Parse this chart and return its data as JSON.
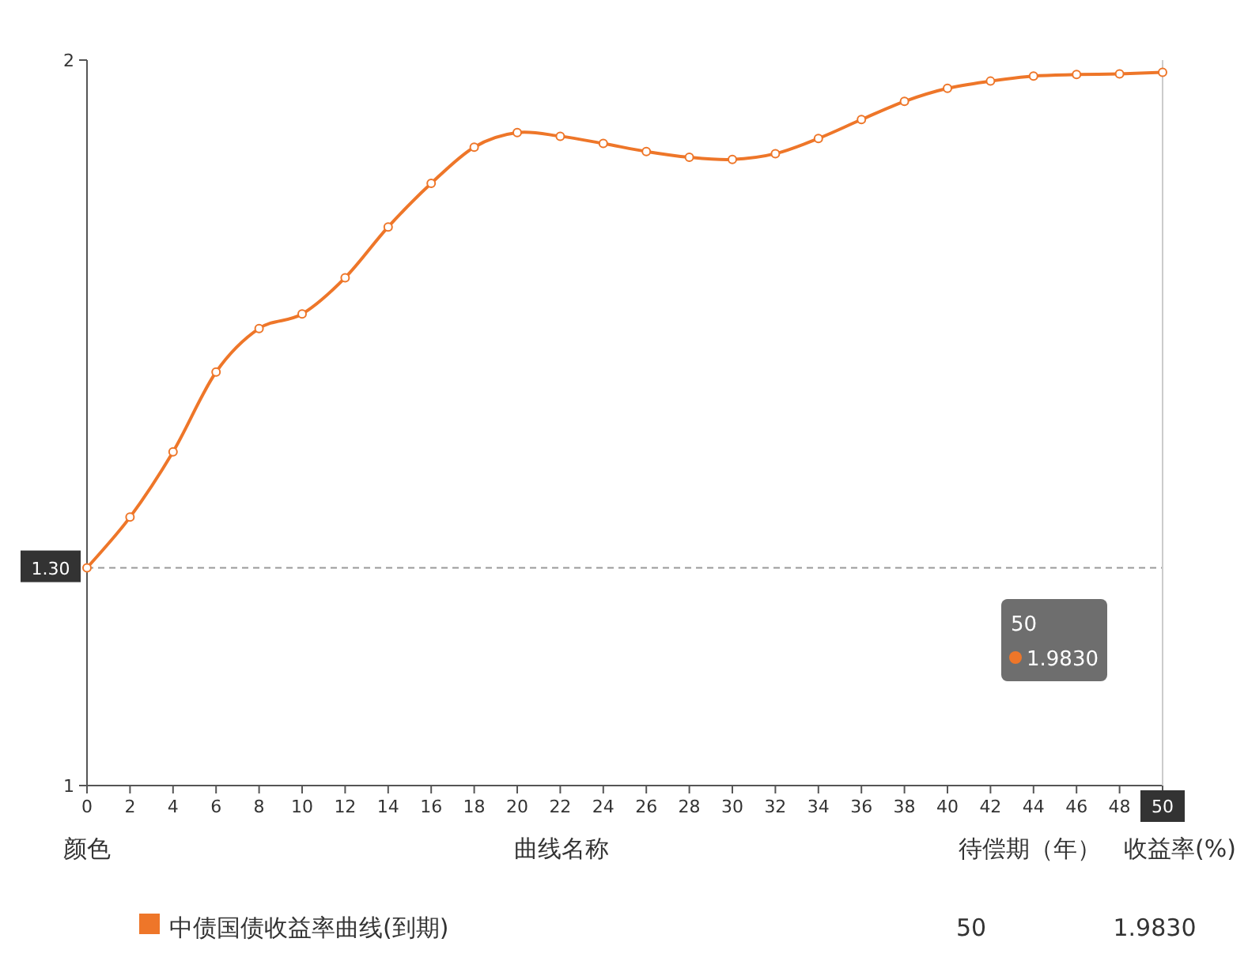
{
  "chart_data": {
    "type": "line",
    "x": [
      0,
      2,
      4,
      6,
      8,
      10,
      12,
      14,
      16,
      18,
      20,
      22,
      24,
      26,
      28,
      30,
      32,
      34,
      36,
      38,
      40,
      42,
      44,
      46,
      48,
      50
    ],
    "series": [
      {
        "name": "中债国债收益率曲线(到期)",
        "color": "#ee7629",
        "values": [
          1.3,
          1.37,
          1.46,
          1.57,
          1.63,
          1.65,
          1.7,
          1.77,
          1.83,
          1.88,
          1.9,
          1.895,
          1.885,
          1.874,
          1.866,
          1.863,
          1.871,
          1.892,
          1.918,
          1.943,
          1.961,
          1.971,
          1.978,
          1.98,
          1.981,
          1.983
        ]
      }
    ],
    "xlim": [
      0,
      50
    ],
    "xticks": [
      0,
      2,
      4,
      6,
      8,
      10,
      12,
      14,
      16,
      18,
      20,
      22,
      24,
      26,
      28,
      30,
      32,
      34,
      36,
      38,
      40,
      42,
      44,
      46,
      48,
      {
        "value": 50,
        "label": null
      }
    ],
    "ylim": [
      1,
      2
    ],
    "yticks": [
      1,
      2
    ],
    "marker": "circle",
    "line_style": "solid",
    "legend": "bottom",
    "ref_lines": [
      {
        "axis": "y",
        "value": 1.3,
        "label": "1.30",
        "line_style": "dashed",
        "color": "#999999"
      },
      {
        "axis": "x",
        "value": 50,
        "label": "50",
        "line_style": "solid",
        "color": "#cccccc"
      }
    ],
    "annotations": [
      "颜色",
      "曲线名称",
      "待偿期（年）",
      "收益率(%)",
      "50",
      "1.9830",
      "50",
      "1.9830"
    ]
  }
}
